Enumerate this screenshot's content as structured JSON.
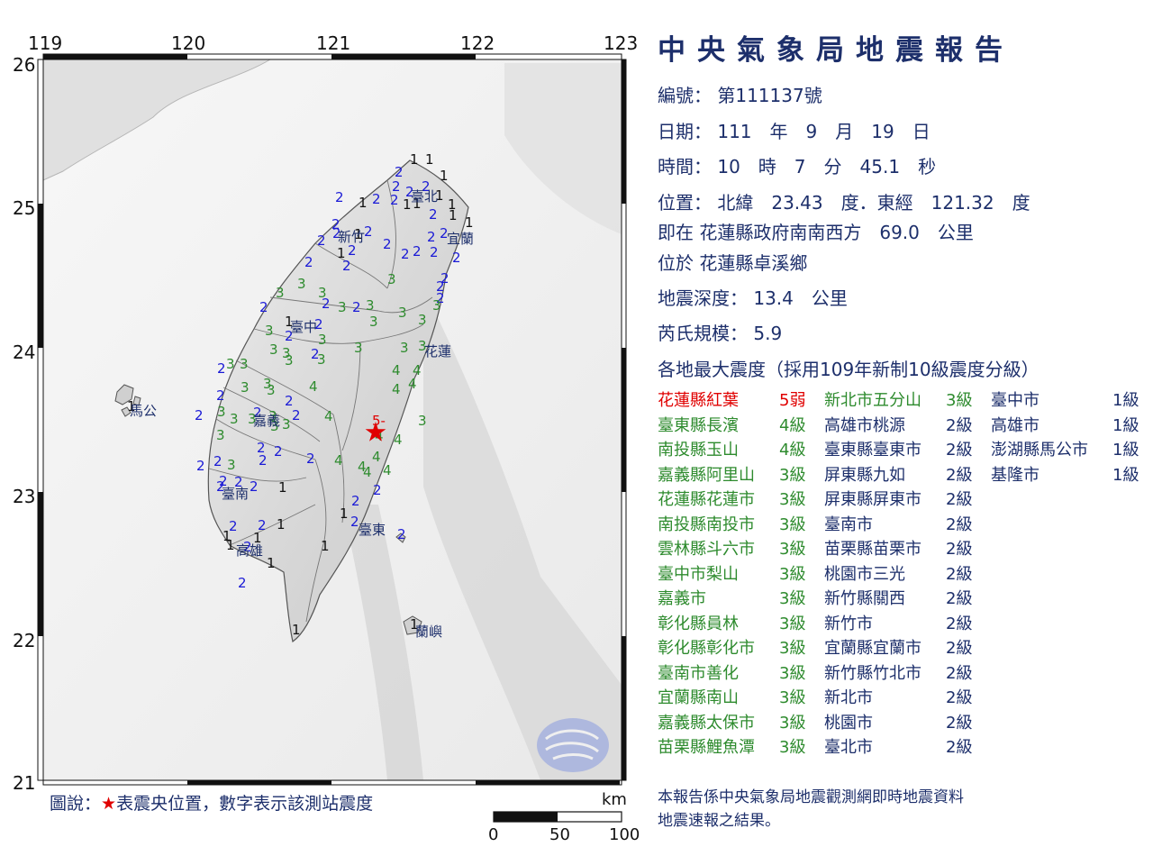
{
  "map": {
    "lon_labels": [
      "119",
      "120",
      "121",
      "122",
      "123"
    ],
    "lat_labels": [
      "26",
      "25",
      "24",
      "23",
      "22",
      "21"
    ],
    "place_labels": [
      "臺北",
      "新竹",
      "宜蘭",
      "臺中",
      "花蓮",
      "馬公",
      "嘉義",
      "臺南",
      "臺東",
      "高雄",
      "蘭嶼"
    ],
    "epicenter_label": "5-",
    "legend_prefix": "圖說：",
    "legend_star": "★",
    "legend_text": "表震央位置，數字表示該測站震度",
    "scale_unit": "km",
    "scale_ticks": [
      "0",
      "50",
      "100"
    ],
    "colors": {
      "level1": "#111111",
      "level2": "#1a1ad6",
      "level3": "#2e8b2e",
      "level4": "#2e8b2e",
      "level5": "#e00000"
    }
  },
  "report": {
    "title": "中央氣象局地震報告",
    "number_label": "編號：",
    "number_value": "第111137號",
    "date_label": "日期：",
    "date_value": "111　年　9　月　19　日",
    "time_label": "時間：",
    "time_value": "10　時　7　分　45.1　秒",
    "position_label": "位置：",
    "position_value": "北緯　23.43　度．東經　121.32　度",
    "located_at_label": "即在",
    "located_at_value": "花蓮縣政府南南西方　69.0　公里",
    "located_in_label": "位於",
    "located_in_value": "花蓮縣卓溪鄉",
    "depth_label": "地震深度：",
    "depth_value": "13.4　公里",
    "magnitude_label": "芮氏規模：",
    "magnitude_value": "5.9",
    "intensity_header": "各地最大震度（採用109年新制10級震度分級）",
    "footer_line1": "本報告係中央氣象局地震觀測網即時地震資料",
    "footer_line2": "地震速報之結果。"
  },
  "stations": {
    "col1": [
      {
        "name": "花蓮縣紅葉",
        "level": "5弱",
        "color": "#e00000"
      },
      {
        "name": "臺東縣長濱",
        "level": "4級",
        "color": "#2e8b2e"
      },
      {
        "name": "南投縣玉山",
        "level": "4級",
        "color": "#2e8b2e"
      },
      {
        "name": "嘉義縣阿里山",
        "level": "3級",
        "color": "#2e8b2e"
      },
      {
        "name": "花蓮縣花蓮市",
        "level": "3級",
        "color": "#2e8b2e"
      },
      {
        "name": "南投縣南投市",
        "level": "3級",
        "color": "#2e8b2e"
      },
      {
        "name": "雲林縣斗六市",
        "level": "3級",
        "color": "#2e8b2e"
      },
      {
        "name": "臺中市梨山",
        "level": "3級",
        "color": "#2e8b2e"
      },
      {
        "name": "嘉義市",
        "level": "3級",
        "color": "#2e8b2e"
      },
      {
        "name": "彰化縣員林",
        "level": "3級",
        "color": "#2e8b2e"
      },
      {
        "name": "彰化縣彰化市",
        "level": "3級",
        "color": "#2e8b2e"
      },
      {
        "name": "臺南市善化",
        "level": "3級",
        "color": "#2e8b2e"
      },
      {
        "name": "宜蘭縣南山",
        "level": "3級",
        "color": "#2e8b2e"
      },
      {
        "name": "嘉義縣太保市",
        "level": "3級",
        "color": "#2e8b2e"
      },
      {
        "name": "苗栗縣鯉魚潭",
        "level": "3級",
        "color": "#2e8b2e"
      }
    ],
    "col2": [
      {
        "name": "新北市五分山",
        "level": "3級",
        "color": "#2e8b2e"
      },
      {
        "name": "高雄市桃源",
        "level": "2級",
        "color": "#1d2f6b"
      },
      {
        "name": "臺東縣臺東市",
        "level": "2級",
        "color": "#1d2f6b"
      },
      {
        "name": "屏東縣九如",
        "level": "2級",
        "color": "#1d2f6b"
      },
      {
        "name": "屏東縣屏東市",
        "level": "2級",
        "color": "#1d2f6b"
      },
      {
        "name": "臺南市",
        "level": "2級",
        "color": "#1d2f6b"
      },
      {
        "name": "苗栗縣苗栗市",
        "level": "2級",
        "color": "#1d2f6b"
      },
      {
        "name": "桃園市三光",
        "level": "2級",
        "color": "#1d2f6b"
      },
      {
        "name": "新竹縣關西",
        "level": "2級",
        "color": "#1d2f6b"
      },
      {
        "name": "新竹市",
        "level": "2級",
        "color": "#1d2f6b"
      },
      {
        "name": "宜蘭縣宜蘭市",
        "level": "2級",
        "color": "#1d2f6b"
      },
      {
        "name": "新竹縣竹北市",
        "level": "2級",
        "color": "#1d2f6b"
      },
      {
        "name": "新北市",
        "level": "2級",
        "color": "#1d2f6b"
      },
      {
        "name": "桃園市",
        "level": "2級",
        "color": "#1d2f6b"
      },
      {
        "name": "臺北市",
        "level": "2級",
        "color": "#1d2f6b"
      }
    ],
    "col3": [
      {
        "name": "臺中市",
        "level": "1級",
        "color": "#1d2f6b"
      },
      {
        "name": "高雄市",
        "level": "1級",
        "color": "#1d2f6b"
      },
      {
        "name": "澎湖縣馬公市",
        "level": "1級",
        "color": "#1d2f6b"
      },
      {
        "name": "基隆市",
        "level": "1級",
        "color": "#1d2f6b"
      }
    ]
  }
}
